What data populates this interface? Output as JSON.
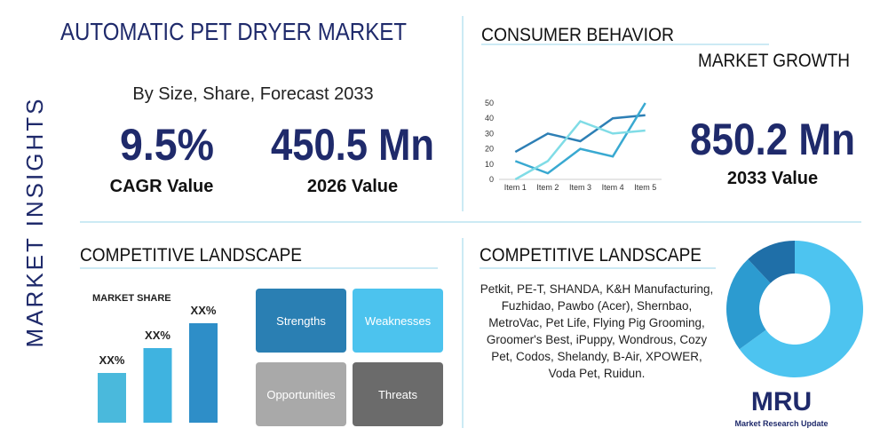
{
  "side_label": "MARKET INSIGHTS",
  "header": {
    "title": "AUTOMATIC PET DRYER MARKET",
    "subtitle": "By Size, Share, Forecast 2033"
  },
  "stats": [
    {
      "value": "9.5%",
      "label": "CAGR Value"
    },
    {
      "value": "450.5 Mn",
      "label": "2026 Value"
    }
  ],
  "consumer": {
    "title": "CONSUMER BEHAVIOR",
    "subtitle": "MARKET GROWTH",
    "chart_data": {
      "type": "line",
      "categories": [
        "Item 1",
        "Item 2",
        "Item 3",
        "Item 4",
        "Item 5"
      ],
      "ylim": [
        0,
        50
      ],
      "yticks": [
        0,
        10,
        20,
        30,
        40,
        50
      ],
      "series": [
        {
          "color": "#2d7fb5",
          "values": [
            18,
            30,
            25,
            40,
            42
          ]
        },
        {
          "color": "#39a9d1",
          "values": [
            12,
            4,
            20,
            15,
            50
          ]
        },
        {
          "color": "#80dce6",
          "values": [
            0,
            12,
            38,
            30,
            32
          ]
        }
      ]
    },
    "stat": {
      "value": "850.2 Mn",
      "label": "2033 Value"
    }
  },
  "landscape_left": {
    "title": "COMPETITIVE LANDSCAPE",
    "chart_data": {
      "type": "bar",
      "title": "MARKET SHARE",
      "values": [
        2,
        3,
        4
      ],
      "value_labels": [
        "XX%",
        "XX%",
        "XX%"
      ],
      "colors": [
        "#4ab9dc",
        "#3fb3e0",
        "#2e8ec8"
      ]
    },
    "swot": [
      "Strengths",
      "Weaknesses",
      "Opportunities",
      "Threats"
    ]
  },
  "landscape_right": {
    "title": "COMPETITIVE LANDSCAPE",
    "companies": "Petkit, PE-T, SHANDA, K&H Manufacturing, Fuzhidao, Pawbo (Acer), Shernbao, MetroVac, Pet Life, Flying Pig Grooming, Groomer's Best, iPuppy, Wondrous, Cozy Pet, Codos, Shelandy, B-Air, XPOWER, Voda Pet, Ruidun.",
    "chart_data": {
      "type": "pie",
      "values": [
        65,
        23,
        12
      ],
      "colors": [
        "#4dc4f0",
        "#2c9bd0",
        "#1f6fa8"
      ]
    }
  },
  "logo": {
    "mark": "MRU",
    "name": "Market Research Update"
  }
}
